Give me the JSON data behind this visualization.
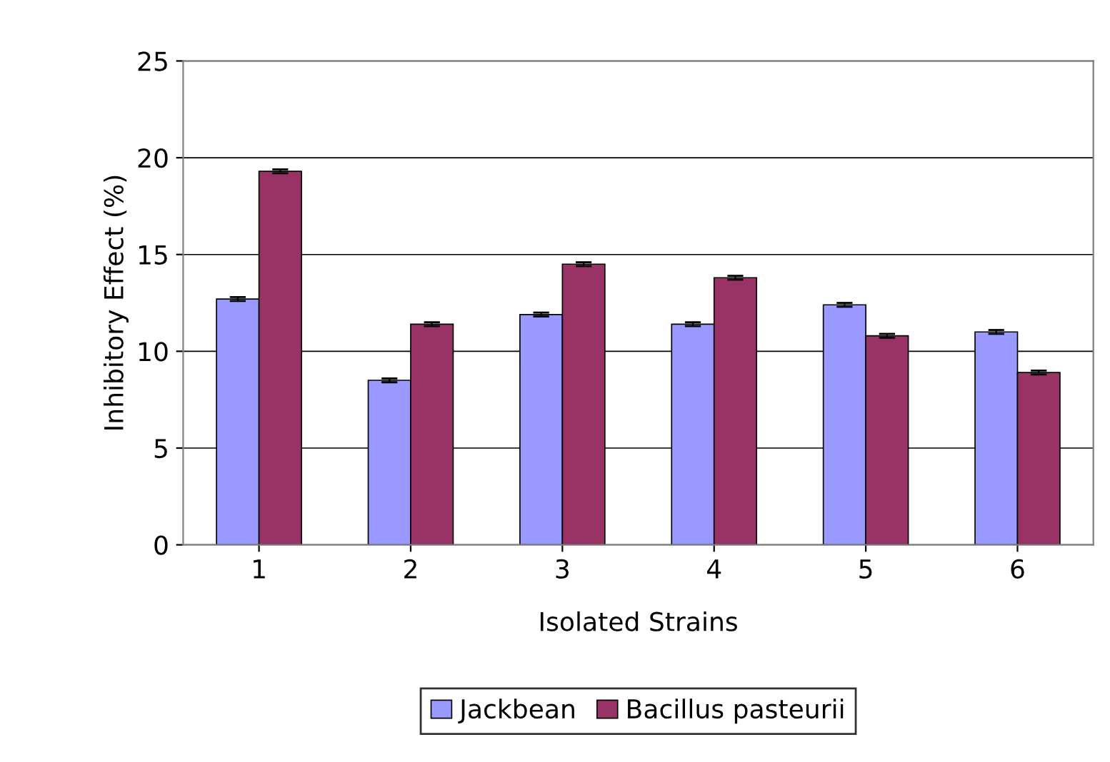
{
  "chart_data": {
    "type": "bar",
    "xlabel": "Isolated Strains",
    "ylabel": "Inhibitory Effect (%)",
    "categories": [
      "1",
      "2",
      "3",
      "4",
      "5",
      "6"
    ],
    "series": [
      {
        "name": "Jackbean",
        "color": "#9999ff",
        "values": [
          12.7,
          8.5,
          11.9,
          11.4,
          12.4,
          11.0
        ],
        "errors": [
          0.1,
          0.1,
          0.1,
          0.1,
          0.1,
          0.1
        ]
      },
      {
        "name": "Bacillus pasteurii",
        "color": "#993366",
        "values": [
          19.3,
          11.4,
          14.5,
          13.8,
          10.8,
          8.9
        ],
        "errors": [
          0.1,
          0.1,
          0.1,
          0.1,
          0.1,
          0.1
        ]
      }
    ],
    "ylim": [
      0,
      25
    ],
    "yticks": [
      0,
      5,
      10,
      15,
      20,
      25
    ],
    "grid": "y",
    "legend": "bottom"
  }
}
